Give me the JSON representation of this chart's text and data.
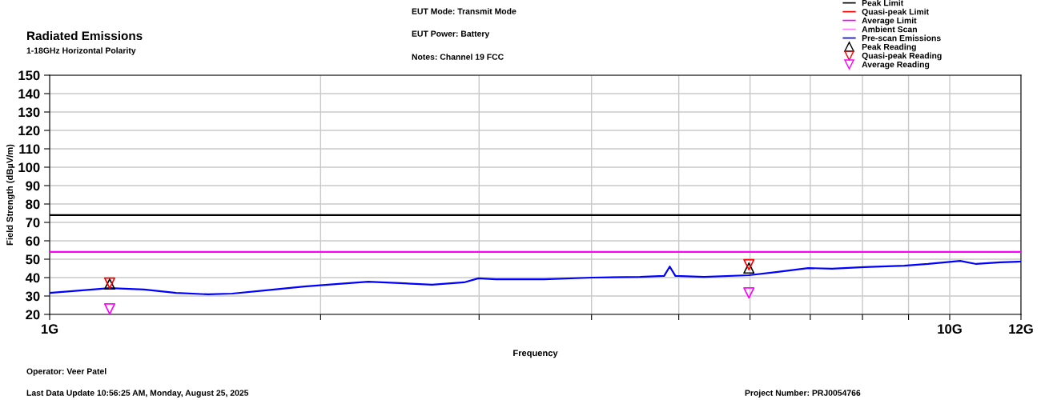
{
  "chart_data": {
    "type": "line",
    "title": "Radiated Emissions",
    "subtitle": "1-18GHz Horizontal Polarity",
    "xlabel": "Frequency",
    "ylabel": "Field Strength (dBµV/m)",
    "annotations": [
      "EUT Mode: Transmit Mode",
      "EUT Power: Battery",
      "Notes: Channel 19 FCC",
      "Operator: Veer Patel",
      "Last Data Update 10:56:25 AM, Monday, August 25, 2025",
      "Project Number: PRJ0054766"
    ],
    "log": "x",
    "xlim": [
      1,
      12
    ],
    "ylim": [
      20,
      150
    ],
    "xticks": [
      {
        "value": 1,
        "label": "1G"
      },
      {
        "value": 2,
        "label": null
      },
      {
        "value": 3,
        "label": null
      },
      {
        "value": 4,
        "label": null
      },
      {
        "value": 5,
        "label": null
      },
      {
        "value": 6,
        "label": null
      },
      {
        "value": 7,
        "label": null
      },
      {
        "value": 8,
        "label": null
      },
      {
        "value": 9,
        "label": null
      },
      {
        "value": 10,
        "label": "10G"
      },
      {
        "value": 12,
        "label": "12G"
      }
    ],
    "yticks": [
      20,
      30,
      40,
      50,
      60,
      70,
      80,
      90,
      100,
      110,
      120,
      130,
      140,
      150
    ],
    "grid": true,
    "legend": "top right",
    "series": [
      {
        "name": "Peak Limit",
        "color": "#000000",
        "x": [
          1,
          12
        ],
        "values": [
          74,
          74
        ]
      },
      {
        "name": "Quasi-peak Limit",
        "color": "#ff0000"
      },
      {
        "name": "Average Limit",
        "color": "#ff00ff",
        "x": [
          1,
          12
        ],
        "values": [
          54,
          54
        ]
      },
      {
        "name": "Ambient Scan",
        "color": "#ff80ff"
      },
      {
        "name": "Pre-scan Emissions",
        "color": "#0000ff",
        "x": [
          1.0,
          1.081,
          1.166,
          1.273,
          1.382,
          1.5,
          1.595,
          1.731,
          1.918,
          2.08,
          2.259,
          2.451,
          2.66,
          2.887,
          2.995,
          3.133,
          3.543,
          4.006,
          4.529,
          4.816,
          4.886,
          4.957,
          5.335,
          5.983,
          6.414,
          6.962,
          7.401,
          8.034,
          8.898,
          9.462,
          10.27,
          10.7,
          11.38,
          12
        ],
        "values": [
          31.7,
          33,
          34.3,
          33.5,
          31.7,
          30.9,
          31.3,
          33,
          35.2,
          36.5,
          37.8,
          37,
          36.1,
          37.4,
          39.6,
          39.1,
          39.1,
          40,
          40.4,
          40.9,
          46,
          40.9,
          40.4,
          41.3,
          43,
          45.2,
          44.8,
          45.7,
          46.5,
          47.4,
          49.1,
          47.4,
          48.3,
          48.7
        ]
      },
      {
        "name": "Peak Reading",
        "type": "scatter",
        "marker": "triangle",
        "color": "#000000",
        "x": [
          1.166,
          5.983
        ],
        "values": [
          36.5,
          45.2
        ]
      },
      {
        "name": "Quasi-peak Reading",
        "type": "scatter",
        "marker": "triangle_down",
        "color": "#ff0000",
        "x": [
          1.166,
          5.983
        ],
        "values": [
          37,
          47
        ]
      },
      {
        "name": "Average Reading",
        "type": "scatter",
        "marker": "triangle_down",
        "color": "#ff00ff",
        "x": [
          1.166,
          5.983
        ],
        "values": [
          23,
          31.7
        ]
      }
    ]
  }
}
